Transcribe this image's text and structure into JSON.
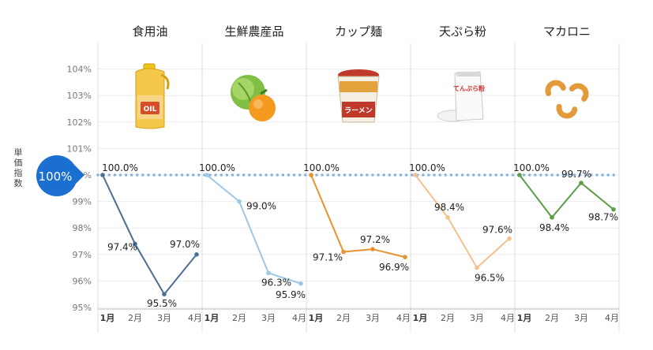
{
  "chart_data": {
    "type": "line",
    "ylabel": "単価指数",
    "reference": {
      "value": 100,
      "label": "100%"
    },
    "ylim": [
      95,
      104.8
    ],
    "yticks": [
      "95%",
      "96%",
      "97%",
      "98%",
      "99%",
      "100%",
      "101%",
      "102%",
      "103%",
      "104%"
    ],
    "grid": true,
    "panels": [
      {
        "name": "食用油",
        "color": "#4a6f95",
        "x": [
          "1月",
          "2月",
          "3月",
          "4月"
        ],
        "values": [
          100.0,
          97.4,
          95.5,
          97.0
        ],
        "labels": [
          "100.0%",
          "97.4%",
          "95.5%",
          "97.0%"
        ],
        "icon": "oil-bottle-icon",
        "icon_text": "OIL"
      },
      {
        "name": "生鮮農産品",
        "color": "#9cc8e6",
        "x": [
          "1月",
          "2月",
          "3月",
          "4月"
        ],
        "values": [
          100.0,
          99.0,
          96.3,
          95.9
        ],
        "labels": [
          "100.0%",
          "99.0%",
          "96.3%",
          "95.9%"
        ],
        "icon": "vegetables-icon"
      },
      {
        "name": "カップ麺",
        "color": "#e8922f",
        "x": [
          "1月",
          "2月",
          "3月",
          "4月"
        ],
        "values": [
          100.0,
          97.1,
          97.2,
          96.9
        ],
        "labels": [
          "100.0%",
          "97.1%",
          "97.2%",
          "96.9%"
        ],
        "icon": "cup-noodle-icon",
        "icon_text": "ラーメン"
      },
      {
        "name": "天ぷら粉",
        "color": "#f4c08e",
        "x": [
          "1月",
          "2月",
          "3月",
          "4月"
        ],
        "values": [
          100.0,
          98.4,
          96.5,
          97.6
        ],
        "labels": [
          "100.0%",
          "98.4%",
          "96.5%",
          "97.6%"
        ],
        "icon": "flour-bag-icon",
        "icon_text": "てんぷら粉"
      },
      {
        "name": "マカロニ",
        "color": "#5c9e46",
        "x": [
          "1月",
          "2月",
          "3月",
          "4月"
        ],
        "values": [
          100.0,
          98.4,
          99.7,
          98.7
        ],
        "labels": [
          "100.0%",
          "98.4%",
          "99.7%",
          "98.7%"
        ],
        "icon": "macaroni-icon"
      }
    ]
  }
}
